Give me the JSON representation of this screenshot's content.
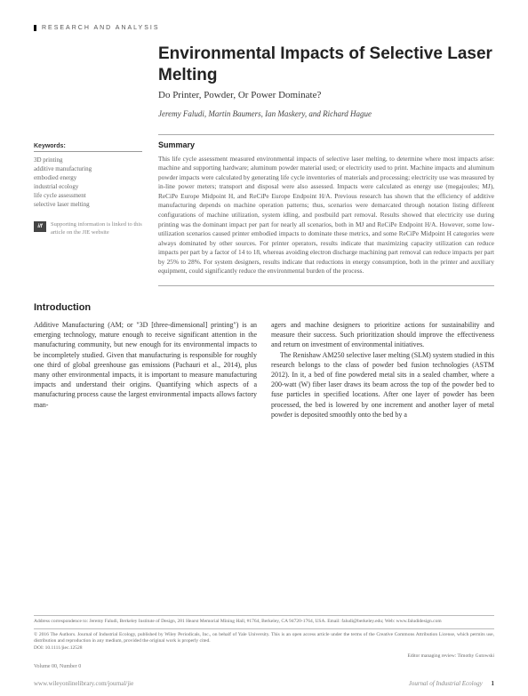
{
  "section_label": "RESEARCH AND ANALYSIS",
  "title": "Environmental Impacts of Selective Laser Melting",
  "subtitle": "Do Printer, Powder, Or Power Dominate?",
  "authors": "Jeremy Faludi, Martin Baumers, Ian Maskery, and Richard Hague",
  "keywords_header": "Keywords:",
  "keywords": "3D printing\nadditive manufacturing\nembodied energy\nindustrial ecology\nlife cycle assessment\nselective laser melting",
  "supp_icon": "i/f",
  "supp_text": "Supporting information is linked to this article on the JIE website",
  "summary_header": "Summary",
  "summary_body": "This life cycle assessment measured environmental impacts of selective laser melting, to determine where most impacts arise: machine and supporting hardware; aluminum powder material used; or electricity used to print. Machine impacts and aluminum powder impacts were calculated by generating life cycle inventories of materials and processing; electricity use was measured by in-line power meters; transport and disposal were also assessed. Impacts were calculated as energy use (megajoules; MJ), ReCiPe Europe Midpoint H, and ReCiPe Europe Endpoint H/A. Previous research has shown that the efficiency of additive manufacturing depends on machine operation patterns; thus, scenarios were demarcated through notation listing different configurations of machine utilization, system idling, and postbuild part removal. Results showed that electricity use during printing was the dominant impact per part for nearly all scenarios, both in MJ and ReCiPe Endpoint H/A. However, some low-utilization scenarios caused printer embodied impacts to dominate these metrics, and some ReCiPe Midpoint H categories were always dominated by other sources. For printer operators, results indicate that maximizing capacity utilization can reduce impacts per part by a factor of 14 to 18, whereas avoiding electron discharge machining part removal can reduce impacts per part by 25% to 28%. For system designers, results indicate that reductions in energy consumption, both in the printer and auxiliary equipment, could significantly reduce the environmental burden of the process.",
  "intro_header": "Introduction",
  "intro_col1": "Additive Manufacturing (AM; or \"3D [three-dimensional] printing\") is an emerging technology, mature enough to receive significant attention in the manufacturing community, but new enough for its environmental impacts to be incompletely studied. Given that manufacturing is responsible for roughly one third of global greenhouse gas emissions (Pachauri et al., 2014), plus many other environmental impacts, it is important to measure manufacturing impacts and understand their origins. Quantifying which aspects of a manufacturing process cause the largest environmental impacts allows factory man-",
  "intro_col2_p1": "agers and machine designers to prioritize actions for sustainability and measure their success. Such prioritization should improve the effectiveness and return on investment of environmental initiatives.",
  "intro_col2_p2": "The Renishaw AM250 selective laser melting (SLM) system studied in this research belongs to the class of powder bed fusion technologies (ASTM 2012). In it, a bed of fine powdered metal sits in a sealed chamber, where a 200-watt (W) fiber laser draws its beam across the top of the powder bed to fuse particles in specified locations. After one layer of powder has been processed, the bed is lowered by one increment and another layer of metal powder is deposited smoothly onto the bed by a",
  "address": "Address correspondence to: Jeremy Faludi, Berkeley Institute of Design, 281 Hearst Memorial Mining Hall, #1764, Berkeley, CA 94720-1764, USA. Email: faludi@berkeley.edu; Web: www.faludidesign.com",
  "copyright": "© 2016 The Authors. Journal of Industrial Ecology, published by Wiley Periodicals, Inc., on behalf of Yale University. This is an open access article under the terms of the Creative Commons Attribution License, which permits use, distribution and reproduction in any medium, provided the original work is properly cited.\nDOI: 10.1111/jiec.12528",
  "editor": "Editor managing review: Timothy Gutowski",
  "volume": "Volume 00, Number 0",
  "footer_left": "www.wileyonlinelibrary.com/journal/jie",
  "footer_right": "Journal of Industrial Ecology",
  "page_num": "1"
}
